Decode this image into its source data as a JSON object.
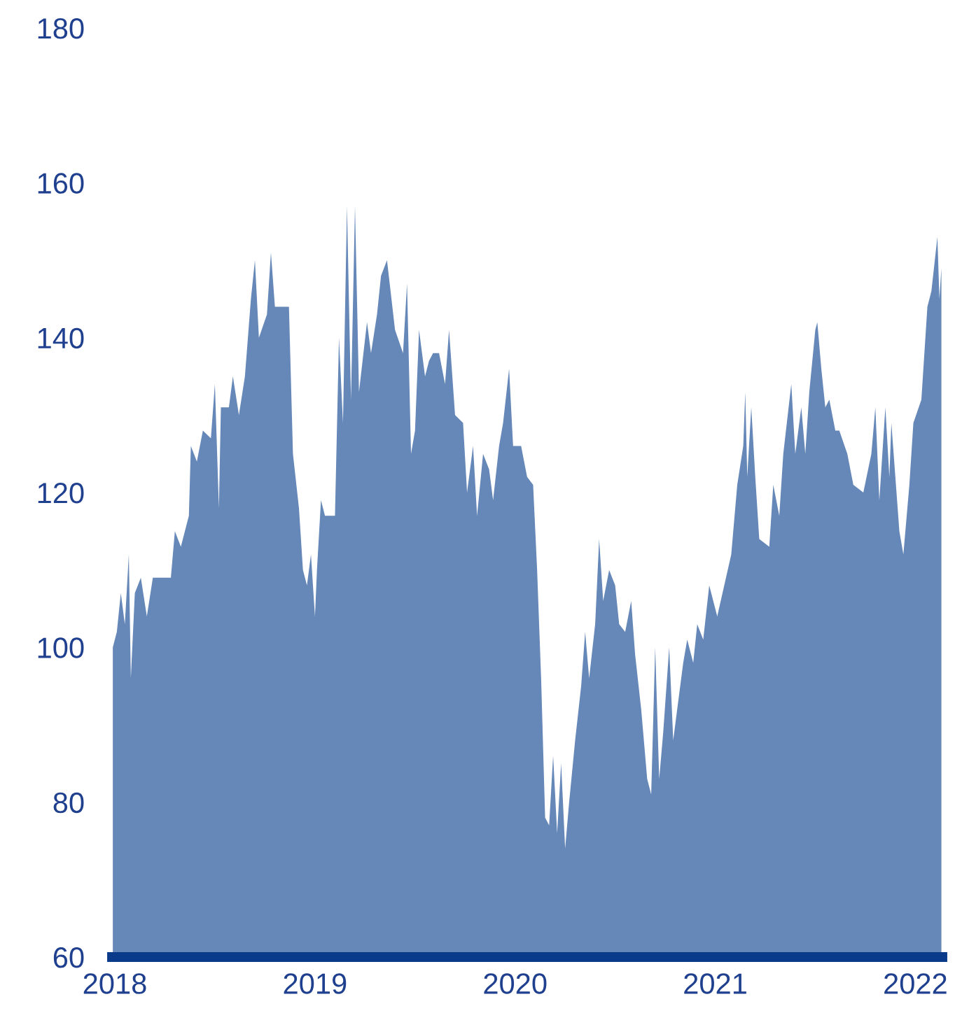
{
  "chart_data": {
    "type": "area",
    "color": "#6688b8",
    "grid": false,
    "xlim": [
      2017.986,
      2022.135
    ],
    "ylim": [
      60,
      180
    ],
    "xticks": [
      2018,
      2019,
      2020,
      2021,
      2022
    ],
    "yticks": [
      60,
      80,
      100,
      120,
      140,
      160,
      180
    ],
    "x": [
      2017.99,
      2018.01,
      2018.03,
      2018.05,
      2018.07,
      2018.08,
      2018.1,
      2018.13,
      2018.16,
      2018.19,
      2018.28,
      2018.3,
      2018.33,
      2018.37,
      2018.38,
      2018.41,
      2018.44,
      2018.48,
      2018.5,
      2018.52,
      2018.53,
      2018.57,
      2018.59,
      2018.62,
      2018.65,
      2018.68,
      2018.7,
      2018.72,
      2018.76,
      2018.78,
      2018.8,
      2018.87,
      2018.89,
      2018.92,
      2018.94,
      2018.96,
      2018.98,
      2019.0,
      2019.01,
      2019.03,
      2019.05,
      2019.1,
      2019.12,
      2019.14,
      2019.16,
      2019.18,
      2019.2,
      2019.22,
      2019.26,
      2019.28,
      2019.31,
      2019.33,
      2019.36,
      2019.4,
      2019.44,
      2019.46,
      2019.48,
      2019.5,
      2019.52,
      2019.55,
      2019.57,
      2019.59,
      2019.62,
      2019.65,
      2019.67,
      2019.7,
      2019.74,
      2019.76,
      2019.79,
      2019.81,
      2019.84,
      2019.87,
      2019.89,
      2019.92,
      2019.94,
      2019.97,
      2019.99,
      2020.03,
      2020.06,
      2020.09,
      2020.11,
      2020.13,
      2020.15,
      2020.17,
      2020.19,
      2020.21,
      2020.23,
      2020.25,
      2020.27,
      2020.3,
      2020.33,
      2020.35,
      2020.37,
      2020.4,
      2020.42,
      2020.44,
      2020.47,
      2020.5,
      2020.52,
      2020.55,
      2020.58,
      2020.6,
      2020.63,
      2020.66,
      2020.68,
      2020.7,
      2020.72,
      2020.74,
      2020.77,
      2020.79,
      2020.81,
      2020.84,
      2020.86,
      2020.89,
      2020.91,
      2020.94,
      2020.97,
      2021.01,
      2021.08,
      2021.11,
      2021.14,
      2021.15,
      2021.16,
      2021.18,
      2021.2,
      2021.22,
      2021.27,
      2021.29,
      2021.32,
      2021.34,
      2021.38,
      2021.4,
      2021.43,
      2021.45,
      2021.47,
      2021.5,
      2021.51,
      2021.53,
      2021.55,
      2021.57,
      2021.6,
      2021.62,
      2021.66,
      2021.69,
      2021.74,
      2021.78,
      2021.8,
      2021.82,
      2021.85,
      2021.87,
      2021.88,
      2021.92,
      2021.94,
      2021.97,
      2021.99,
      2022.03,
      2022.06,
      2022.08,
      2022.11,
      2022.12,
      2022.13
    ],
    "values": [
      100,
      102,
      107,
      103,
      112,
      96,
      107,
      109,
      104,
      109,
      109,
      115,
      113,
      117,
      126,
      124,
      128,
      127,
      134,
      118,
      131,
      131,
      135,
      130,
      135,
      145,
      150,
      140,
      143,
      151,
      144,
      144,
      125,
      118,
      110,
      108,
      112,
      104,
      110,
      119,
      117,
      117,
      140,
      129,
      157,
      132,
      157,
      133,
      142,
      138,
      143,
      148,
      150,
      141,
      138,
      147,
      125,
      128,
      141,
      135,
      137,
      138,
      138,
      134,
      141,
      130,
      129,
      120,
      126,
      117,
      125,
      123,
      119,
      126,
      129,
      136,
      126,
      126,
      122,
      121,
      110,
      96,
      78,
      77,
      86,
      76,
      85,
      74,
      80,
      88,
      95,
      102,
      96,
      103,
      114,
      106,
      110,
      108,
      103,
      102,
      106,
      99,
      92,
      83,
      81,
      100,
      83,
      89,
      100,
      88,
      92,
      98,
      101,
      98,
      103,
      101,
      108,
      104,
      112,
      121,
      126,
      133,
      122,
      131,
      122,
      114,
      113,
      121,
      117,
      125,
      134,
      125,
      131,
      125,
      133,
      141,
      142,
      136,
      131,
      132,
      128,
      128,
      125,
      121,
      120,
      125,
      131,
      119,
      131,
      122,
      129,
      115,
      112,
      121,
      129,
      132,
      144,
      146,
      153,
      145,
      149
    ]
  }
}
